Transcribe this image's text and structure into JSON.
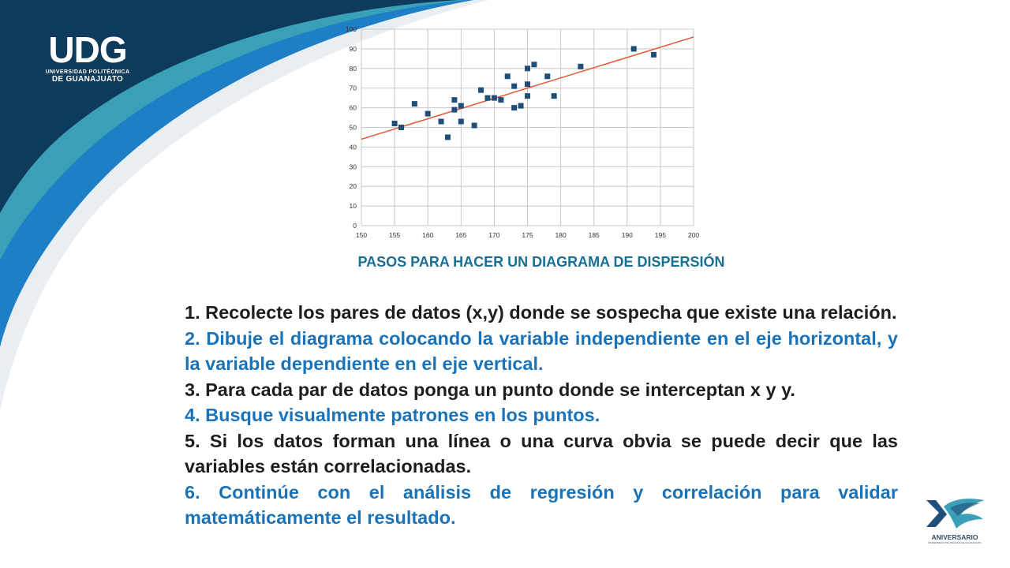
{
  "logo": {
    "word": "UDG",
    "line1": "UNIVERSIDAD POLITÉCNICA",
    "line2": "DE GUANAJUATO"
  },
  "heading": "PASOS PARA HACER UN DIAGRAMA DE DISPERSIÓN",
  "steps": [
    {
      "text": "1. Recolecte los pares de datos (x,y) donde se sospecha que existe una relación.",
      "color": "#1e1e1e"
    },
    {
      "text": "2. Dibuje el diagrama colocando la variable independiente en el eje horizontal, y la variable dependiente en el eje vertical.",
      "color": "#1a73b8"
    },
    {
      "text": "3. Para cada par de datos ponga un punto donde se interceptan x y y.",
      "color": "#1e1e1e"
    },
    {
      "text": "4. Busque visualmente patrones en los puntos.",
      "color": "#1a73b8"
    },
    {
      "text": "5. Si los datos forman una línea o una curva obvia se puede decir que las variables están correlacionadas.",
      "color": "#1e1e1e"
    },
    {
      "text": "6. Continúe con el análisis de regresión y correlación para validar matemáticamente el resultado.",
      "color": "#1a73b8"
    }
  ],
  "badge": {
    "label": "ANIVERSARIO",
    "sub": "UNIVERSIDAD POLITÉCNICA DE GUANAJUATO"
  },
  "colors": {
    "navy": "#0e3a5c",
    "teal": "#3aa0b8",
    "blue": "#1f7fc6",
    "heading": "#1a6f96",
    "point": "#1f4e79",
    "trendline": "#e8542f"
  },
  "chart_data": {
    "type": "scatter",
    "xlim": [
      150,
      200
    ],
    "ylim": [
      0,
      100
    ],
    "xticks": [
      150,
      155,
      160,
      165,
      170,
      175,
      180,
      185,
      190,
      195,
      200
    ],
    "yticks": [
      0,
      10,
      20,
      30,
      40,
      50,
      60,
      70,
      80,
      90,
      100
    ],
    "grid": true,
    "legend": "none",
    "series": [
      {
        "points": [
          [
            155,
            52
          ],
          [
            156,
            50
          ],
          [
            158,
            62
          ],
          [
            160,
            57
          ],
          [
            162,
            53
          ],
          [
            163,
            45
          ],
          [
            164,
            59
          ],
          [
            164,
            64
          ],
          [
            165,
            53
          ],
          [
            165,
            61
          ],
          [
            167,
            51
          ],
          [
            168,
            69
          ],
          [
            169,
            65
          ],
          [
            170,
            65
          ],
          [
            171,
            64
          ],
          [
            172,
            76
          ],
          [
            173,
            71
          ],
          [
            173,
            60
          ],
          [
            174,
            61
          ],
          [
            175,
            72
          ],
          [
            175,
            66
          ],
          [
            175,
            80
          ],
          [
            176,
            82
          ],
          [
            178,
            76
          ],
          [
            179,
            66
          ],
          [
            183,
            81
          ],
          [
            191,
            90
          ],
          [
            194,
            87
          ]
        ]
      }
    ],
    "trendline": {
      "x": [
        150,
        200
      ],
      "y": [
        44,
        96
      ]
    }
  }
}
